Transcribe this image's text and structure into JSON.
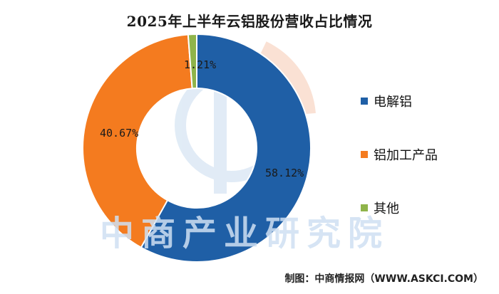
{
  "chart_data": {
    "type": "pie",
    "title": "2025年上半年云铝股份营收占比情况",
    "categories": [
      "电解铝",
      "铝加工产品",
      "其他"
    ],
    "values": [
      58.12,
      40.67,
      1.21
    ],
    "labels": [
      "58.12%",
      "40.67%",
      "1.21%"
    ],
    "colors": [
      "#1f5fa6",
      "#f47b1f",
      "#8fb44a"
    ],
    "legend_position": "right"
  },
  "watermark": "中商产业研究院",
  "source": "制图：中商情报网（WWW.ASKCI.COM）"
}
